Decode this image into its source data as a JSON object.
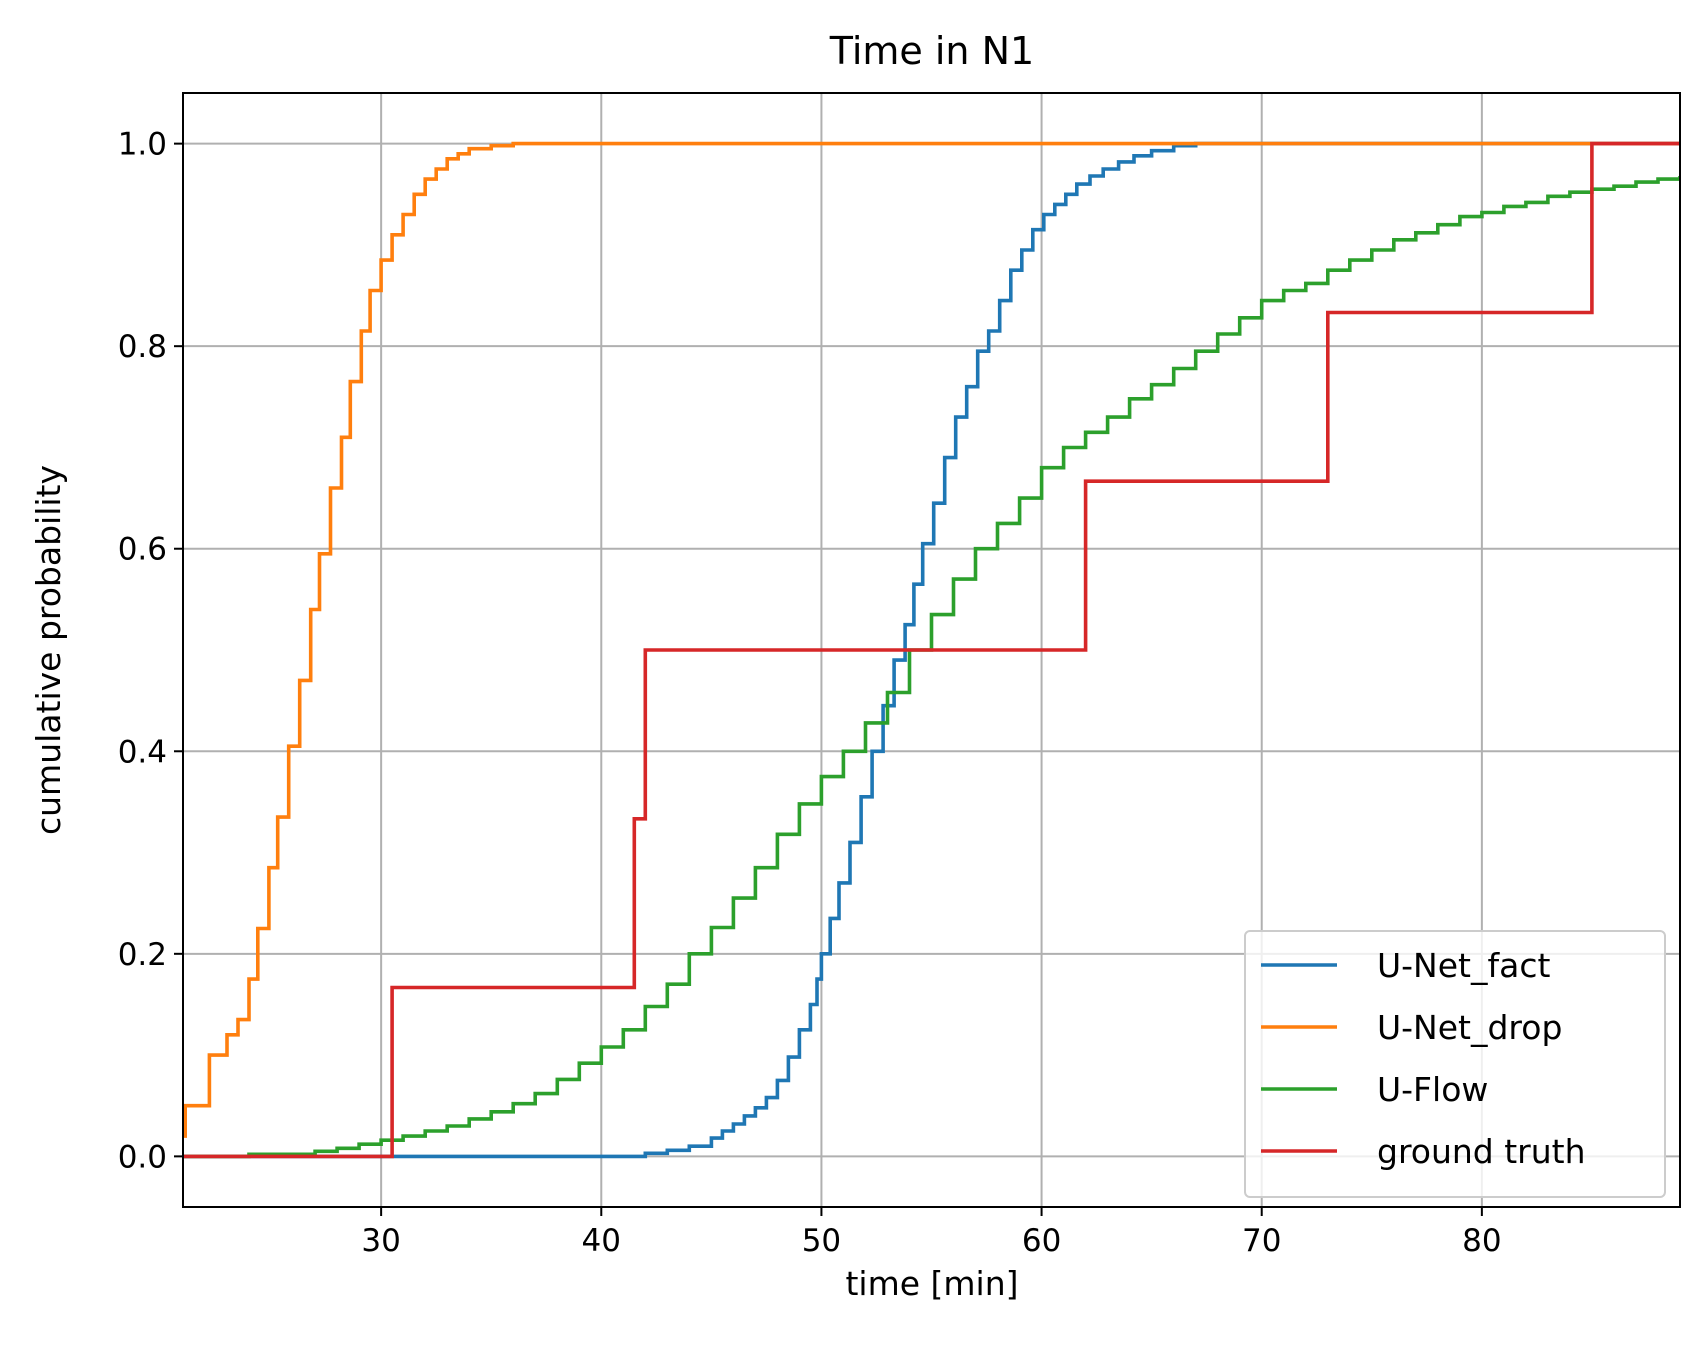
{
  "chart_data": {
    "type": "line",
    "step": true,
    "title": "Time in N1",
    "xlabel": "time [min]",
    "ylabel": "cumulative probability",
    "xlim": [
      21,
      89
    ],
    "ylim": [
      -0.05,
      1.05
    ],
    "xticks": [
      30,
      40,
      50,
      60,
      70,
      80
    ],
    "yticks": [
      0.0,
      0.2,
      0.4,
      0.6,
      0.8,
      1.0
    ],
    "xtick_labels": [
      "30",
      "40",
      "50",
      "60",
      "70",
      "80"
    ],
    "ytick_labels": [
      "0.0",
      "0.2",
      "0.4",
      "0.6",
      "0.8",
      "1.0"
    ],
    "grid": true,
    "legend_position": "lower right",
    "series": [
      {
        "name": "U-Net_fact",
        "color": "#1f77b4",
        "points": [
          [
            21,
            0
          ],
          [
            40,
            0
          ],
          [
            42,
            0.003
          ],
          [
            43,
            0.006
          ],
          [
            44,
            0.01
          ],
          [
            45,
            0.018
          ],
          [
            45.5,
            0.025
          ],
          [
            46,
            0.032
          ],
          [
            46.5,
            0.04
          ],
          [
            47,
            0.048
          ],
          [
            47.5,
            0.058
          ],
          [
            48,
            0.075
          ],
          [
            48.5,
            0.098
          ],
          [
            49,
            0.125
          ],
          [
            49.5,
            0.15
          ],
          [
            49.8,
            0.175
          ],
          [
            50,
            0.2
          ],
          [
            50.4,
            0.235
          ],
          [
            50.8,
            0.27
          ],
          [
            51.3,
            0.31
          ],
          [
            51.8,
            0.355
          ],
          [
            52.3,
            0.4
          ],
          [
            52.8,
            0.445
          ],
          [
            53.3,
            0.49
          ],
          [
            53.8,
            0.525
          ],
          [
            54.2,
            0.565
          ],
          [
            54.6,
            0.605
          ],
          [
            55.1,
            0.645
          ],
          [
            55.6,
            0.69
          ],
          [
            56.1,
            0.73
          ],
          [
            56.6,
            0.76
          ],
          [
            57.1,
            0.795
          ],
          [
            57.6,
            0.815
          ],
          [
            58.1,
            0.845
          ],
          [
            58.6,
            0.875
          ],
          [
            59.1,
            0.895
          ],
          [
            59.6,
            0.915
          ],
          [
            60.1,
            0.93
          ],
          [
            60.6,
            0.94
          ],
          [
            61.1,
            0.95
          ],
          [
            61.6,
            0.96
          ],
          [
            62.2,
            0.968
          ],
          [
            62.8,
            0.975
          ],
          [
            63.5,
            0.982
          ],
          [
            64.2,
            0.988
          ],
          [
            65,
            0.993
          ],
          [
            66,
            0.998
          ],
          [
            67,
            1.0
          ],
          [
            89,
            1.0
          ]
        ]
      },
      {
        "name": "U-Net_drop",
        "color": "#ff7f0e",
        "points": [
          [
            21,
            0.02
          ],
          [
            21.1,
            0.05
          ],
          [
            22.2,
            0.1
          ],
          [
            23,
            0.12
          ],
          [
            23.5,
            0.135
          ],
          [
            24,
            0.175
          ],
          [
            24.4,
            0.225
          ],
          [
            24.9,
            0.285
          ],
          [
            25.3,
            0.335
          ],
          [
            25.8,
            0.405
          ],
          [
            26.3,
            0.47
          ],
          [
            26.8,
            0.54
          ],
          [
            27.2,
            0.595
          ],
          [
            27.7,
            0.66
          ],
          [
            28.2,
            0.71
          ],
          [
            28.6,
            0.765
          ],
          [
            29.1,
            0.815
          ],
          [
            29.5,
            0.855
          ],
          [
            30,
            0.885
          ],
          [
            30.5,
            0.91
          ],
          [
            31,
            0.93
          ],
          [
            31.5,
            0.95
          ],
          [
            32,
            0.965
          ],
          [
            32.5,
            0.975
          ],
          [
            33,
            0.985
          ],
          [
            33.5,
            0.99
          ],
          [
            34,
            0.995
          ],
          [
            35,
            0.998
          ],
          [
            36,
            1.0
          ],
          [
            89,
            1.0
          ]
        ]
      },
      {
        "name": "U-Flow",
        "color": "#2ca02c",
        "points": [
          [
            21,
            0
          ],
          [
            24,
            0.002
          ],
          [
            27,
            0.005
          ],
          [
            28,
            0.008
          ],
          [
            29,
            0.012
          ],
          [
            30,
            0.016
          ],
          [
            31,
            0.02
          ],
          [
            32,
            0.025
          ],
          [
            33,
            0.03
          ],
          [
            34,
            0.037
          ],
          [
            35,
            0.044
          ],
          [
            36,
            0.052
          ],
          [
            37,
            0.062
          ],
          [
            38,
            0.076
          ],
          [
            39,
            0.092
          ],
          [
            40,
            0.108
          ],
          [
            41,
            0.125
          ],
          [
            42,
            0.148
          ],
          [
            43,
            0.17
          ],
          [
            44,
            0.2
          ],
          [
            45,
            0.226
          ],
          [
            46,
            0.255
          ],
          [
            47,
            0.285
          ],
          [
            48,
            0.318
          ],
          [
            49,
            0.348
          ],
          [
            50,
            0.375
          ],
          [
            51,
            0.4
          ],
          [
            52,
            0.428
          ],
          [
            53,
            0.458
          ],
          [
            54,
            0.5
          ],
          [
            55,
            0.535
          ],
          [
            56,
            0.57
          ],
          [
            57,
            0.6
          ],
          [
            58,
            0.625
          ],
          [
            59,
            0.65
          ],
          [
            60,
            0.68
          ],
          [
            61,
            0.7
          ],
          [
            62,
            0.715
          ],
          [
            63,
            0.73
          ],
          [
            64,
            0.748
          ],
          [
            65,
            0.762
          ],
          [
            66,
            0.778
          ],
          [
            67,
            0.795
          ],
          [
            68,
            0.812
          ],
          [
            69,
            0.828
          ],
          [
            70,
            0.845
          ],
          [
            71,
            0.855
          ],
          [
            72,
            0.862
          ],
          [
            73,
            0.875
          ],
          [
            74,
            0.885
          ],
          [
            75,
            0.895
          ],
          [
            76,
            0.905
          ],
          [
            77,
            0.912
          ],
          [
            78,
            0.92
          ],
          [
            79,
            0.928
          ],
          [
            80,
            0.932
          ],
          [
            81,
            0.938
          ],
          [
            82,
            0.942
          ],
          [
            83,
            0.948
          ],
          [
            84,
            0.952
          ],
          [
            85,
            0.955
          ],
          [
            86,
            0.958
          ],
          [
            87,
            0.962
          ],
          [
            88,
            0.965
          ],
          [
            89,
            0.968
          ]
        ]
      },
      {
        "name": "ground truth",
        "color": "#d62728",
        "points": [
          [
            21,
            0
          ],
          [
            30.5,
            0
          ],
          [
            30.5,
            0.1667
          ],
          [
            41.5,
            0.1667
          ],
          [
            41.5,
            0.3333
          ],
          [
            42,
            0.3333
          ],
          [
            42,
            0.5
          ],
          [
            62,
            0.5
          ],
          [
            62,
            0.6667
          ],
          [
            73,
            0.6667
          ],
          [
            73,
            0.8333
          ],
          [
            85,
            0.8333
          ],
          [
            85,
            1.0
          ],
          [
            89,
            1.0
          ]
        ]
      }
    ]
  }
}
